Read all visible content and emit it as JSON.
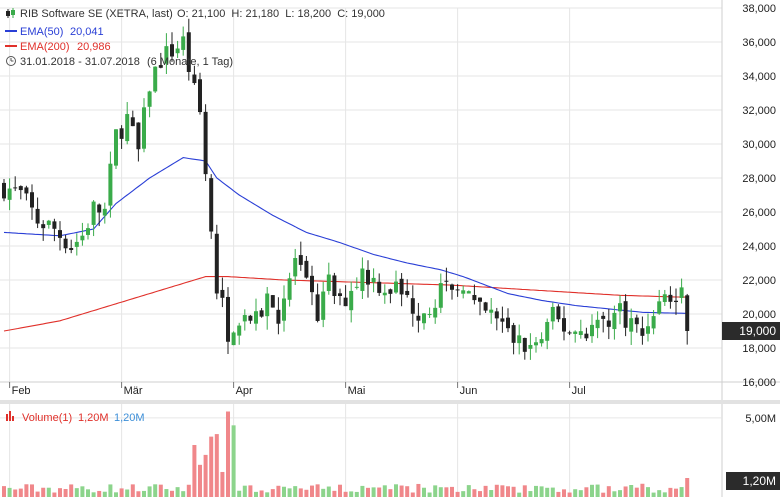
{
  "header": {
    "title": "RIB Software SE (XETRA, last)",
    "ohlc": "O: 21,100  H: 21,180  L: 18,200  C: 19,000",
    "ema50_label": "EMA(50)",
    "ema50_value": "20,041",
    "ema200_label": "EMA(200)",
    "ema200_value": "20,986",
    "range_text": "31.01.2018 - 31.07.2018",
    "range_detail": "(6 Monate, 1 Tag)"
  },
  "last_price_badge": "19,000",
  "volume_header": {
    "label": "Volume(1)",
    "value_red": "1,20M",
    "value_blue": "1,20M"
  },
  "volume_badge": "1,20M",
  "colors": {
    "up": "#3aab4a",
    "down": "#222222",
    "ema50": "#2a3fd6",
    "ema200": "#e0302a",
    "vol_up": "#8cd48c",
    "vol_down": "#f0878a",
    "grid": "#e6e6e6",
    "badge": "#2b2b2b"
  },
  "chart_data": {
    "type": "candlestick",
    "price_axis": {
      "ylim": [
        16,
        38
      ],
      "ticks": [
        16,
        18,
        20,
        22,
        24,
        26,
        28,
        30,
        32,
        34,
        36,
        38
      ],
      "tick_labels": [
        "16,000",
        "18,000",
        "20,000",
        "22,000",
        "24,000",
        "26,000",
        "28,000",
        "30,000",
        "32,000",
        "34,000",
        "36,000",
        "38,000"
      ]
    },
    "x_axis": {
      "n_days": 130,
      "month_labels": [
        {
          "label": "Feb",
          "day": 1
        },
        {
          "label": "Mär",
          "day": 21
        },
        {
          "label": "Apr",
          "day": 41
        },
        {
          "label": "Mai",
          "day": 61
        },
        {
          "label": "Jun",
          "day": 81
        },
        {
          "label": "Jul",
          "day": 101
        }
      ]
    },
    "price_anchors": [
      [
        0,
        27.5
      ],
      [
        3,
        27.0
      ],
      [
        6,
        25.5
      ],
      [
        9,
        25.0
      ],
      [
        12,
        24.0
      ],
      [
        14,
        24.6
      ],
      [
        16,
        26.2
      ],
      [
        18,
        26.0
      ],
      [
        20,
        30.5
      ],
      [
        22,
        31.5
      ],
      [
        24,
        29.5
      ],
      [
        26,
        33.5
      ],
      [
        28,
        35.0
      ],
      [
        30,
        35.5
      ],
      [
        32,
        36.0
      ],
      [
        34,
        33.0
      ],
      [
        35,
        31.5
      ],
      [
        36,
        28.0
      ],
      [
        37,
        24.5
      ],
      [
        38,
        21.5
      ],
      [
        39,
        20.5
      ],
      [
        40,
        18.0
      ],
      [
        41,
        19.5
      ],
      [
        43,
        20.0
      ],
      [
        45,
        19.5
      ],
      [
        47,
        21.0
      ],
      [
        49,
        20.0
      ],
      [
        51,
        22.0
      ],
      [
        52,
        23.2
      ],
      [
        54,
        21.5
      ],
      [
        56,
        20.0
      ],
      [
        58,
        21.8
      ],
      [
        60,
        20.5
      ],
      [
        62,
        21.5
      ],
      [
        64,
        22.5
      ],
      [
        66,
        22.0
      ],
      [
        68,
        21.6
      ],
      [
        70,
        21.5
      ],
      [
        72,
        20.8
      ],
      [
        74,
        20.2
      ],
      [
        76,
        20.5
      ],
      [
        78,
        21.5
      ],
      [
        80,
        21.0
      ],
      [
        82,
        22.0
      ],
      [
        84,
        20.3
      ],
      [
        86,
        20.0
      ],
      [
        88,
        19.8
      ],
      [
        90,
        18.8
      ],
      [
        92,
        18.3
      ],
      [
        94,
        18.0
      ],
      [
        96,
        18.5
      ],
      [
        98,
        19.8
      ],
      [
        100,
        19.2
      ],
      [
        102,
        19.0
      ],
      [
        104,
        19.1
      ],
      [
        106,
        19.4
      ],
      [
        108,
        19.8
      ],
      [
        110,
        20.2
      ],
      [
        112,
        19.5
      ],
      [
        114,
        18.8
      ],
      [
        116,
        20.3
      ],
      [
        118,
        21.0
      ],
      [
        120,
        20.8
      ],
      [
        121,
        21.1
      ],
      [
        122,
        19.0
      ]
    ],
    "ema50_anchors": [
      [
        0,
        24.8
      ],
      [
        10,
        24.6
      ],
      [
        16,
        25.0
      ],
      [
        20,
        26.5
      ],
      [
        26,
        28.0
      ],
      [
        32,
        29.2
      ],
      [
        36,
        29.0
      ],
      [
        38,
        28.0
      ],
      [
        42,
        27.0
      ],
      [
        48,
        25.8
      ],
      [
        54,
        24.8
      ],
      [
        60,
        24.2
      ],
      [
        66,
        23.5
      ],
      [
        72,
        23.0
      ],
      [
        78,
        22.6
      ],
      [
        82,
        22.2
      ],
      [
        86,
        21.7
      ],
      [
        90,
        21.2
      ],
      [
        96,
        20.8
      ],
      [
        102,
        20.5
      ],
      [
        108,
        20.3
      ],
      [
        114,
        20.1
      ],
      [
        120,
        20.05
      ],
      [
        122,
        20.04
      ]
    ],
    "ema200_anchors": [
      [
        0,
        19.0
      ],
      [
        10,
        19.6
      ],
      [
        20,
        20.6
      ],
      [
        30,
        21.6
      ],
      [
        36,
        22.2
      ],
      [
        40,
        22.2
      ],
      [
        50,
        22.0
      ],
      [
        60,
        21.9
      ],
      [
        70,
        21.8
      ],
      [
        80,
        21.7
      ],
      [
        90,
        21.5
      ],
      [
        100,
        21.3
      ],
      [
        110,
        21.1
      ],
      [
        120,
        21.0
      ],
      [
        122,
        20.99
      ]
    ],
    "volume_axis": {
      "ylim": [
        0,
        6.0
      ],
      "ticks": [
        5.0
      ],
      "tick_labels": [
        "5,00M"
      ],
      "last_volume": 1.2
    }
  }
}
